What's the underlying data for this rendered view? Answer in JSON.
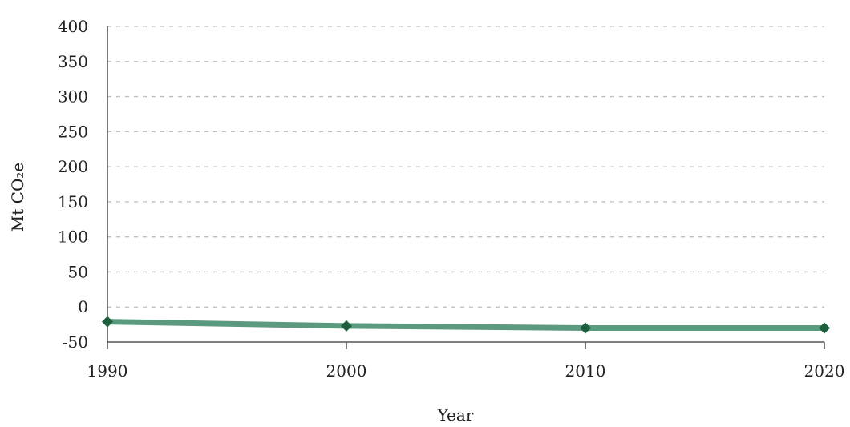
{
  "chart_data": {
    "type": "line",
    "x": [
      1990,
      2000,
      2010,
      2020
    ],
    "xlim": [
      1990,
      2020
    ],
    "ylim": [
      -50,
      400
    ],
    "yticks": [
      -50,
      0,
      50,
      100,
      150,
      200,
      250,
      300,
      350,
      400
    ],
    "xticks": [
      1990,
      2000,
      2010,
      2020
    ],
    "xlabel": "Year",
    "ylabel": "Mt CO₂e",
    "grid": "horizontal dashed",
    "series": [
      {
        "values": [
          -21,
          -27,
          -30,
          -30
        ],
        "color": "#5c9a80",
        "marker_color": "#1d5e3c"
      }
    ]
  }
}
